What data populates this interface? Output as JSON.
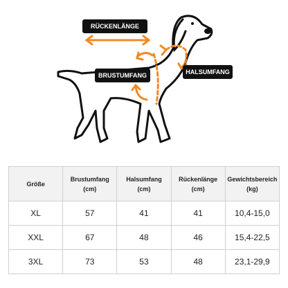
{
  "diagram": {
    "labels": {
      "back": "RÜCKENLÄNGE",
      "chest": "BRUSTUMFANG",
      "neck": "HALSUMFANG"
    }
  },
  "table": {
    "header": [
      [
        "Größe"
      ],
      [
        "Brustumfang",
        "(cm)"
      ],
      [
        "Halsumfang",
        "(cm)"
      ],
      [
        "Rückenlänge",
        "(cm)"
      ],
      [
        "Gewichtsbereich",
        "(kg)"
      ]
    ],
    "rows": [
      [
        "XL",
        "57",
        "41",
        "41",
        "10,4-15,0"
      ],
      [
        "XXL",
        "67",
        "48",
        "46",
        "15,4-22,5"
      ],
      [
        "3XL",
        "73",
        "53",
        "48",
        "23,1-29,9"
      ]
    ]
  }
}
